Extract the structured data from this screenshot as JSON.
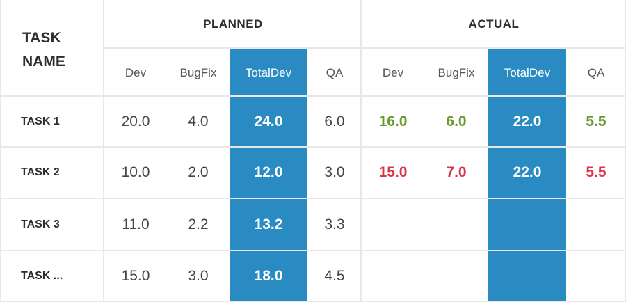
{
  "header": {
    "task_name": "TASK\nNAME",
    "groups": [
      "PLANNED",
      "ACTUAL"
    ],
    "subcolumns": [
      "Dev",
      "BugFix",
      "TotalDev",
      "QA"
    ]
  },
  "rows": [
    {
      "task": "TASK 1",
      "planned": {
        "dev": "20.0",
        "bugfix": "4.0",
        "totaldev": "24.0",
        "qa": "6.0"
      },
      "actual": {
        "dev": "16.0",
        "bugfix": "6.0",
        "totaldev": "22.0",
        "qa": "5.5"
      },
      "actual_status": "good"
    },
    {
      "task": "TASK 2",
      "planned": {
        "dev": "10.0",
        "bugfix": "2.0",
        "totaldev": "12.0",
        "qa": "3.0"
      },
      "actual": {
        "dev": "15.0",
        "bugfix": "7.0",
        "totaldev": "22.0",
        "qa": "5.5"
      },
      "actual_status": "bad"
    },
    {
      "task": "TASK 3",
      "planned": {
        "dev": "11.0",
        "bugfix": "2.2",
        "totaldev": "13.2",
        "qa": "3.3"
      },
      "actual": {
        "dev": "",
        "bugfix": "",
        "totaldev": "",
        "qa": ""
      },
      "actual_status": "none"
    },
    {
      "task": "TASK ...",
      "planned": {
        "dev": "15.0",
        "bugfix": "3.0",
        "totaldev": "18.0",
        "qa": "4.5"
      },
      "actual": {
        "dev": "",
        "bugfix": "",
        "totaldev": "",
        "qa": ""
      },
      "actual_status": "none"
    }
  ],
  "colors": {
    "highlight": "#2a8bc3",
    "good": "#6a9a2f",
    "bad": "#d9364a",
    "grid": "#e8e8e8"
  }
}
